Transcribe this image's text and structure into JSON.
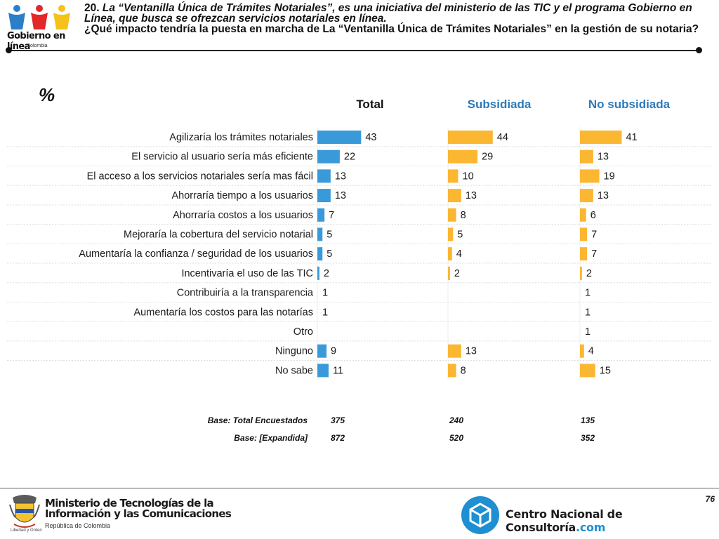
{
  "header": {
    "brand": "Gobierno en línea",
    "brand_sub": "Colombia",
    "question_prefix": "20. ",
    "question_italic": "La “Ventanilla Única de Trámites Notariales”, es una iniciativa del ministerio de las TIC y el programa Gobierno en Línea, que busca se ofrezcan servicios notariales en línea.",
    "question_main": "¿Qué impacto tendría la puesta en marcha de La “Ventanilla Única de Trámites Notariales” en la gestión de su notaria?"
  },
  "percent_symbol": "%",
  "colors": {
    "total": "#3a9ad9",
    "sub": "#fbb632",
    "nosub": "#fbb632",
    "header_blue": "#2e7ab8"
  },
  "chart_data": {
    "type": "bar",
    "orientation": "horizontal",
    "categories": [
      "Agilizaría los trámites notariales",
      "El servicio al usuario sería más eficiente",
      "El acceso a los servicios notariales sería mas fácil",
      "Ahorraría tiempo a los usuarios",
      "Ahorraría costos a los usuarios",
      "Mejoraría la cobertura del servicio notarial",
      "Aumentaría la confianza / seguridad de los usuarios",
      "Incentivaría el uso de las TIC",
      "Contribuiría a la transparencia",
      "Aumentaría los costos para las notarías",
      "Otro",
      "Ninguno",
      "No sabe"
    ],
    "series": [
      {
        "name": "Total",
        "values": [
          43,
          22,
          13,
          13,
          7,
          5,
          5,
          2,
          1,
          1,
          null,
          9,
          11
        ]
      },
      {
        "name": "Subsidiada",
        "values": [
          44,
          29,
          10,
          13,
          8,
          5,
          4,
          2,
          null,
          null,
          null,
          13,
          8
        ]
      },
      {
        "name": "No subsidiada",
        "values": [
          41,
          13,
          19,
          13,
          6,
          7,
          7,
          2,
          1,
          1,
          1,
          4,
          15
        ]
      }
    ]
  },
  "bases": [
    {
      "label": "Base: Total Encuestados",
      "values": [
        "375",
        "240",
        "135"
      ]
    },
    {
      "label": "Base: [Expandida]",
      "values": [
        "872",
        "520",
        "352"
      ]
    }
  ],
  "footer": {
    "page_number": "76",
    "ministry": "Ministerio de Tecnologías de la Información y las Comunicaciones",
    "ministry_line1": "Ministerio de Tecnologías de la",
    "ministry_line2": "Información y las Comunicaciones",
    "republic": "República de Colombia",
    "motto": "Libertad y Orden",
    "cnc_name": "Centro Nacional de Consultoría",
    "cnc_suffix": ".com"
  }
}
